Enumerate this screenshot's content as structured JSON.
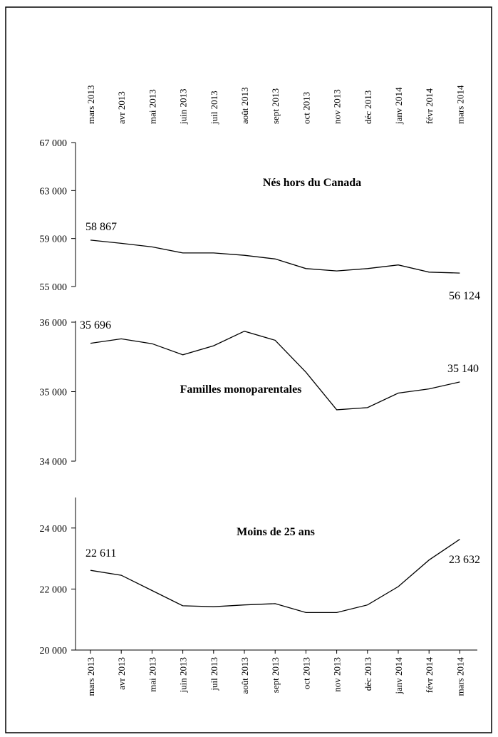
{
  "months": [
    "mars 2013",
    "avr 2013",
    "mai 2013",
    "juin 2013",
    "juil 2013",
    "août 2013",
    "sept 2013",
    "oct 2013",
    "nov 2013",
    "déc 2013",
    "janv 2014",
    "févr 2014",
    "mars 2014"
  ],
  "chart_data": [
    {
      "type": "line",
      "title": "Nés hors du Canada",
      "categories": [
        "mars 2013",
        "avr 2013",
        "mai 2013",
        "juin 2013",
        "juil 2013",
        "août 2013",
        "sept 2013",
        "oct 2013",
        "nov 2013",
        "déc 2013",
        "janv 2014",
        "févr 2014",
        "mars 2014"
      ],
      "values": [
        58867,
        58600,
        58300,
        57800,
        57800,
        57600,
        57300,
        56500,
        56300,
        56500,
        56800,
        56200,
        56124
      ],
      "ylim": [
        55000,
        67000
      ],
      "yticks": [
        "55 000",
        "59 000",
        "63 000",
        "67 000"
      ],
      "ytick_values": [
        55000,
        59000,
        63000,
        67000
      ],
      "start_label": "58 867",
      "end_label": "56 124"
    },
    {
      "type": "line",
      "title": "Familles monoparentales",
      "categories": [
        "mars 2013",
        "avr 2013",
        "mai 2013",
        "juin 2013",
        "juil 2013",
        "août 2013",
        "sept 2013",
        "oct 2013",
        "nov 2013",
        "déc 2013",
        "janv 2014",
        "févr 2014",
        "mars 2014"
      ],
      "values": [
        35696,
        35760,
        35690,
        35530,
        35660,
        35870,
        35740,
        35280,
        34740,
        34770,
        34980,
        35040,
        35140
      ],
      "ylim": [
        34000,
        36000
      ],
      "yticks": [
        "34 000",
        "35 000",
        "36 000"
      ],
      "ytick_values": [
        34000,
        35000,
        36000
      ],
      "start_label": "35 696",
      "end_label": "35 140"
    },
    {
      "type": "line",
      "title": "Moins de 25 ans",
      "categories": [
        "mars 2013",
        "avr 2013",
        "mai 2013",
        "juin 2013",
        "juil 2013",
        "août 2013",
        "sept 2013",
        "oct 2013",
        "nov 2013",
        "déc 2013",
        "janv 2014",
        "févr 2014",
        "mars 2014"
      ],
      "values": [
        22611,
        22450,
        21950,
        21450,
        21420,
        21480,
        21520,
        21230,
        21230,
        21480,
        22080,
        22950,
        23632
      ],
      "ylim": [
        20000,
        25000
      ],
      "yticks": [
        "20 000",
        "22 000",
        "24 000"
      ],
      "ytick_values": [
        20000,
        22000,
        24000
      ],
      "start_label": "22 611",
      "end_label": "23 632"
    }
  ]
}
